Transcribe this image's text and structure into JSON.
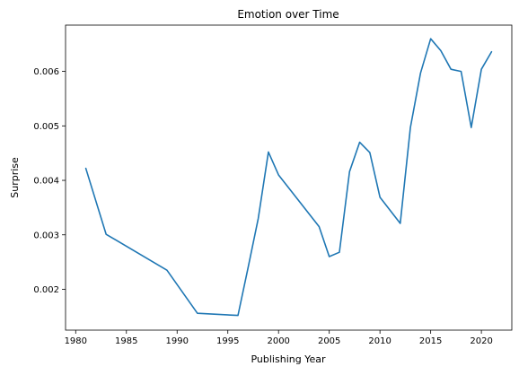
{
  "chart_data": {
    "type": "line",
    "title": "Emotion over Time",
    "xlabel": "Publishing Year",
    "ylabel": "Surprise",
    "xlim": [
      1979.0,
      2023.0
    ],
    "ylim": [
      0.00125,
      0.00685
    ],
    "x_ticks": [
      1980,
      1985,
      1990,
      1995,
      2000,
      2005,
      2010,
      2015,
      2020
    ],
    "x_tick_labels": [
      "1980",
      "1985",
      "1990",
      "1995",
      "2000",
      "2005",
      "2010",
      "2015",
      "2020"
    ],
    "y_ticks": [
      0.002,
      0.003,
      0.004,
      0.005,
      0.006
    ],
    "y_tick_labels": [
      "0.002",
      "0.003",
      "0.004",
      "0.005",
      "0.006"
    ],
    "grid": false,
    "colors": {
      "series": "#1f77b4"
    },
    "series": [
      {
        "x": [
          1981,
          1983,
          1989,
          1992,
          1996,
          1997,
          1998,
          1999,
          2000,
          2004,
          2005,
          2006,
          2007,
          2008,
          2009,
          2010,
          2012,
          2013,
          2014,
          2015,
          2016,
          2017,
          2018,
          2019,
          2020,
          2021
        ],
        "y": [
          0.00422,
          0.00301,
          0.00235,
          0.00156,
          0.00152,
          0.0024,
          0.0033,
          0.00452,
          0.0041,
          0.00315,
          0.0026,
          0.00268,
          0.00416,
          0.0047,
          0.00451,
          0.00369,
          0.00321,
          0.00497,
          0.00597,
          0.0066,
          0.00638,
          0.00604,
          0.006,
          0.00497,
          0.00604,
          0.00636
        ]
      }
    ]
  }
}
